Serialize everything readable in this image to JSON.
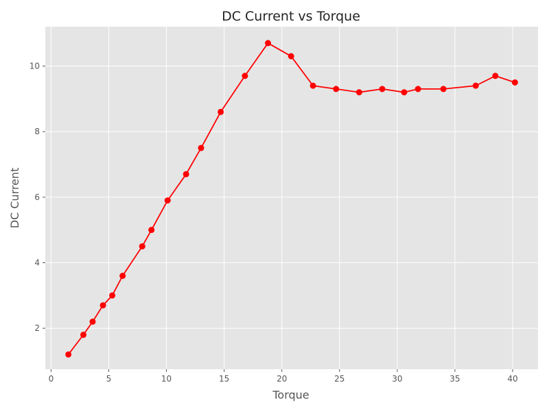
{
  "chart_data": {
    "type": "line",
    "title": "DC Current vs Torque",
    "xlabel": "Torque",
    "ylabel": "DC Current",
    "xlim": [
      -0.5,
      42.2
    ],
    "ylim": [
      0.75,
      11.2
    ],
    "xticks": [
      0,
      5,
      10,
      15,
      20,
      25,
      30,
      35,
      40
    ],
    "yticks": [
      2,
      4,
      6,
      8,
      10
    ],
    "grid": true,
    "legend": "none",
    "colors": {
      "line": "#ff0000",
      "marker": "#ff0000",
      "plot_background": "#e5e5e5",
      "grid": "#ffffff",
      "text": "#555555"
    },
    "series": [
      {
        "x": [
          1.5,
          2.8,
          3.6,
          4.5,
          5.3,
          6.2,
          7.9,
          8.7,
          10.1,
          11.7,
          13.0,
          14.7,
          16.8,
          18.8,
          20.8,
          22.7,
          24.7,
          26.7,
          28.7,
          30.6,
          31.8,
          34.0,
          36.8,
          38.5,
          40.2
        ],
        "y": [
          1.2,
          1.8,
          2.2,
          2.7,
          3.0,
          3.6,
          4.5,
          5.0,
          5.9,
          6.7,
          7.5,
          8.6,
          9.7,
          10.7,
          10.3,
          9.4,
          9.3,
          9.2,
          9.3,
          9.2,
          9.3,
          9.3,
          9.4,
          9.7,
          9.5
        ]
      }
    ]
  }
}
